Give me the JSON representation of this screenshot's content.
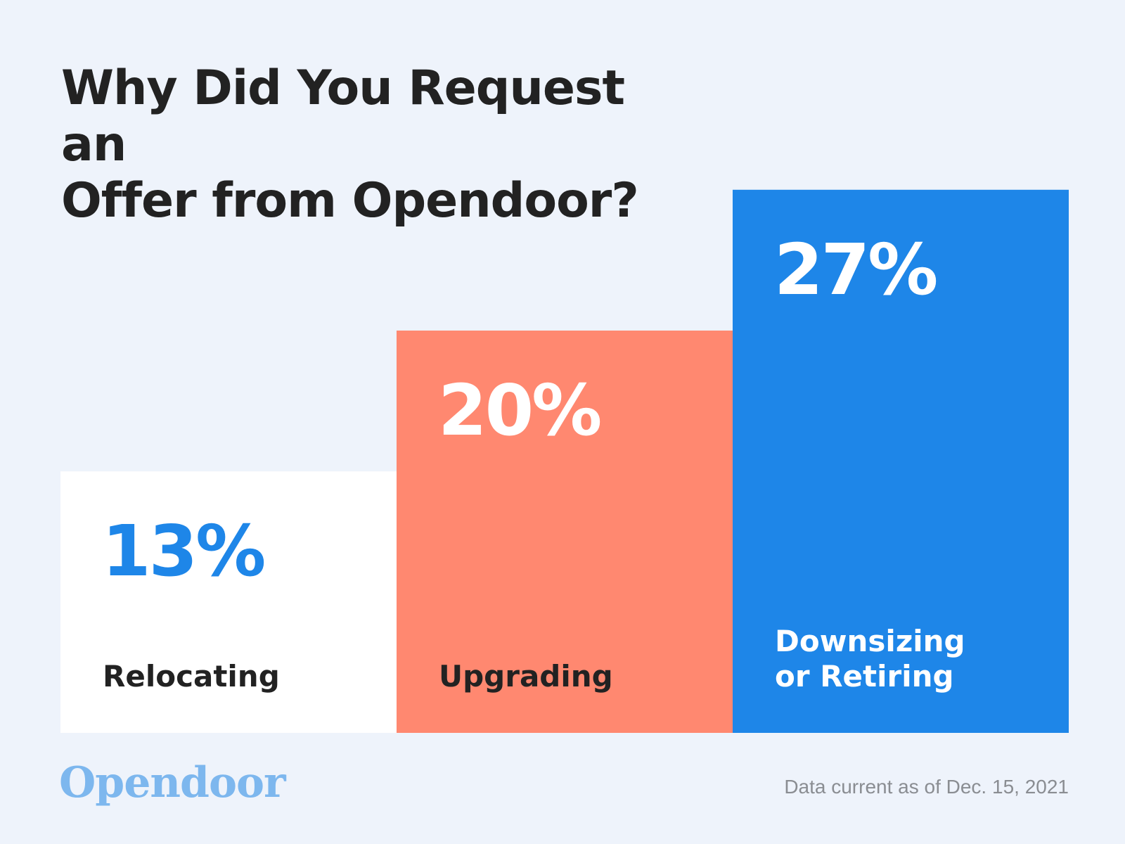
{
  "title_line1": "Why Did You Request an",
  "title_line2": "Offer from Opendoor?",
  "brand": "Opendoor",
  "footnote": "Data current as of Dec. 15, 2021",
  "colors": {
    "background": "#EEF3FB",
    "title_text": "#222222",
    "brand": "#7DB7EE",
    "footnote": "#8A8D92"
  },
  "chart_data": {
    "type": "bar",
    "title": "Why Did You Request an Offer from Opendoor?",
    "categories": [
      "Relocating",
      "Upgrading",
      "Downsizing or Retiring"
    ],
    "category_label_lines": [
      [
        "Relocating"
      ],
      [
        "Upgrading"
      ],
      [
        "Downsizing",
        "or Retiring"
      ]
    ],
    "values": [
      13,
      20,
      27
    ],
    "value_labels": [
      "13%",
      "20%",
      "27%"
    ],
    "unit": "%",
    "bar_colors": [
      "#FFFFFF",
      "#FF8870",
      "#1E86E8"
    ],
    "value_label_colors": [
      "#1E86E8",
      "#FFFFFF",
      "#FFFFFF"
    ],
    "category_label_colors": [
      "#222222",
      "#222222",
      "#FFFFFF"
    ],
    "grid": false,
    "axes_visible": false
  }
}
